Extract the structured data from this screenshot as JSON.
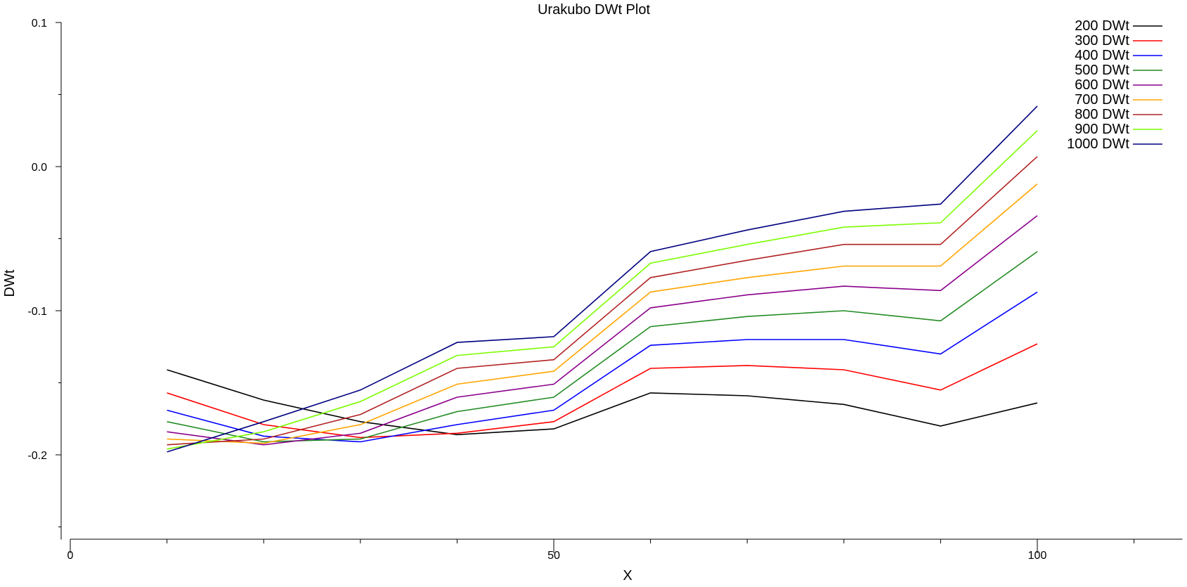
{
  "chart_data": {
    "type": "line",
    "title": "Urakubo DWt Plot",
    "xlabel": "X",
    "ylabel": "DWt",
    "xlim": [
      0,
      115
    ],
    "ylim": [
      -0.25,
      0.1
    ],
    "x_ticks_major": [
      0,
      50,
      100
    ],
    "x_tick_labels": [
      "0",
      "50",
      "100"
    ],
    "x_ticks_minor": [
      10,
      20,
      30,
      40,
      60,
      70,
      80,
      90,
      110
    ],
    "y_ticks_major": [
      0.1,
      0.0,
      -0.1,
      -0.2
    ],
    "y_tick_labels": [
      "0.1",
      "0.0",
      "-0.1",
      "-0.2"
    ],
    "y_ticks_minor": [
      0.05,
      -0.05,
      -0.15,
      -0.25
    ],
    "grid": false,
    "legend_position": "top-right",
    "x": [
      10,
      20,
      30,
      40,
      50,
      60,
      70,
      80,
      90,
      100
    ],
    "series": [
      {
        "name": "200 DWt",
        "color": "#000000",
        "values": [
          -0.141,
          -0.162,
          -0.177,
          -0.186,
          -0.182,
          -0.157,
          -0.159,
          -0.165,
          -0.18,
          -0.164
        ]
      },
      {
        "name": "300 DWt",
        "color": "#ff0000",
        "values": [
          -0.157,
          -0.179,
          -0.188,
          -0.185,
          -0.177,
          -0.14,
          -0.138,
          -0.141,
          -0.155,
          -0.123
        ]
      },
      {
        "name": "400 DWt",
        "color": "#0000ff",
        "values": [
          -0.169,
          -0.187,
          -0.191,
          -0.179,
          -0.169,
          -0.124,
          -0.12,
          -0.12,
          -0.13,
          -0.087
        ]
      },
      {
        "name": "500 DWt",
        "color": "#228b22",
        "values": [
          -0.177,
          -0.191,
          -0.189,
          -0.17,
          -0.16,
          -0.111,
          -0.104,
          -0.1,
          -0.107,
          -0.059
        ]
      },
      {
        "name": "600 DWt",
        "color": "#8b008b",
        "values": [
          -0.184,
          -0.193,
          -0.185,
          -0.16,
          -0.151,
          -0.098,
          -0.089,
          -0.083,
          -0.086,
          -0.034
        ]
      },
      {
        "name": "700 DWt",
        "color": "#ffa500",
        "values": [
          -0.189,
          -0.192,
          -0.179,
          -0.151,
          -0.142,
          -0.087,
          -0.077,
          -0.069,
          -0.069,
          -0.012
        ]
      },
      {
        "name": "800 DWt",
        "color": "#b22222",
        "values": [
          -0.193,
          -0.189,
          -0.172,
          -0.14,
          -0.134,
          -0.077,
          -0.065,
          -0.054,
          -0.054,
          0.007
        ]
      },
      {
        "name": "900 DWt",
        "color": "#7cfc00",
        "values": [
          -0.196,
          -0.184,
          -0.163,
          -0.131,
          -0.125,
          -0.067,
          -0.054,
          -0.042,
          -0.039,
          0.025
        ]
      },
      {
        "name": "1000 DWt",
        "color": "#000080",
        "values": [
          -0.198,
          -0.177,
          -0.155,
          -0.122,
          -0.118,
          -0.059,
          -0.044,
          -0.031,
          -0.026,
          0.042
        ]
      }
    ]
  }
}
